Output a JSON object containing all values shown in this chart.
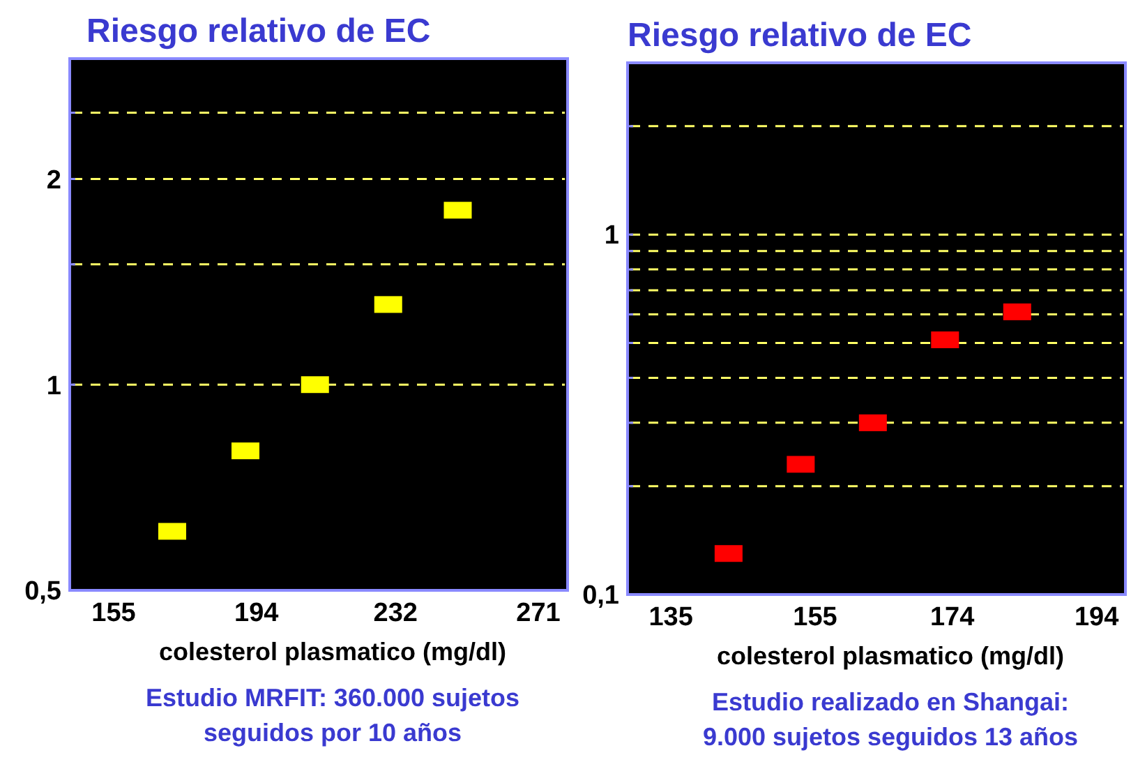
{
  "chart_data": [
    {
      "type": "scatter",
      "title": "Riesgo relativo de EC",
      "xlabel": "colesterol plasmatico (mg/dl)",
      "annotations": [
        "Estudio MRFIT: 360.000 sujetos\nseguidos por 10 años"
      ],
      "x": [
        171,
        191,
        210,
        230,
        249
      ],
      "series": [
        {
          "color": "#ffff00",
          "values": [
            0.61,
            0.8,
            1.0,
            1.31,
            1.8
          ]
        }
      ],
      "xlim": [
        143,
        279
      ],
      "xticks": [
        155,
        194,
        232,
        271
      ],
      "ylim": [
        0.5,
        3
      ],
      "yticks": [
        {
          "value": 0.5,
          "label": "0,5"
        },
        {
          "value": 1,
          "label": "1"
        },
        {
          "value": 1.5,
          "label": null
        },
        {
          "value": 2,
          "label": "2"
        },
        {
          "value": 2.5,
          "label": null
        }
      ],
      "log": true,
      "grid": "y",
      "marker": "square"
    },
    {
      "type": "scatter",
      "title": "Riesgo relativo de EC",
      "xlabel": "colesterol plasmatico (mg/dl)",
      "annotations": [
        "Estudio realizado en Shangai:\n9.000 sujetos seguidos 13 años"
      ],
      "x": [
        143,
        153,
        163,
        173,
        183
      ],
      "series": [
        {
          "color": "#ff0000",
          "values": [
            0.13,
            0.23,
            0.3,
            0.51,
            0.61
          ]
        }
      ],
      "xlim": [
        129,
        198
      ],
      "xticks": [
        135,
        155,
        174,
        194
      ],
      "ylim": [
        0.1,
        3
      ],
      "yticks": [
        {
          "value": 0.1,
          "label": "0,1"
        },
        {
          "value": 0.2,
          "label": null
        },
        {
          "value": 0.3,
          "label": null
        },
        {
          "value": 0.4,
          "label": null
        },
        {
          "value": 0.5,
          "label": null
        },
        {
          "value": 0.6,
          "label": null
        },
        {
          "value": 0.7,
          "label": null
        },
        {
          "value": 0.8,
          "label": null
        },
        {
          "value": 0.9,
          "label": null
        },
        {
          "value": 1,
          "label": "1"
        },
        {
          "value": 2,
          "label": null
        }
      ],
      "log": true,
      "grid": "y",
      "marker": "square"
    }
  ]
}
